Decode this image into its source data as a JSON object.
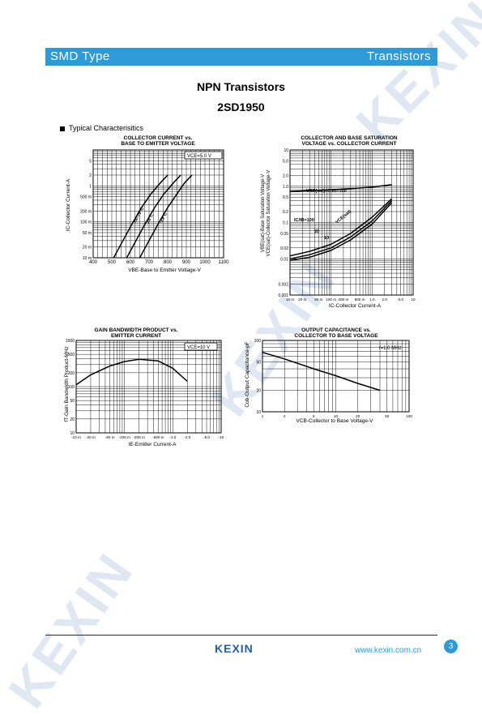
{
  "header": {
    "left": "SMD Type",
    "right": "Transistors"
  },
  "title": "NPN  Transistors",
  "part_number": "2SD1950",
  "section_label": "Typical  Characterisitics",
  "watermark": "KEXIN",
  "footer": {
    "logo": "KEXIN",
    "url": "www.kexin.com.cn",
    "page": "3"
  },
  "chart_data": [
    {
      "type": "line",
      "title": "COLLECTOR CURRENT vs. BASE TO EMITTER VOLTAGE",
      "title_lines": [
        "COLLECTOR CURRENT vs.",
        "BASE TO EMITTER VOLTAGE"
      ],
      "xlabel": "VBE-Base to Emitter Voltage-V",
      "ylabel": "IC-Collector Current-A",
      "condition": "VCE=5.0 V",
      "x_ticks": [
        "400",
        "500",
        "600",
        "700",
        "800",
        "900",
        "1000",
        "1100"
      ],
      "y_ticks": [
        "5",
        "2",
        "1",
        "500 m",
        "200 m",
        "100 m",
        "50 m",
        "20 m",
        "10 m"
      ],
      "xlim": [
        400,
        1100
      ],
      "ylim": [
        0.01,
        10
      ],
      "y_scale": "log",
      "series": [
        {
          "name": "Ta=75°C",
          "x": [
            510,
            560,
            610,
            660,
            710,
            760,
            800
          ],
          "y": [
            0.01,
            0.03,
            0.09,
            0.25,
            0.6,
            1.2,
            2.0
          ]
        },
        {
          "name": "25°C",
          "x": [
            580,
            630,
            680,
            730,
            780,
            830,
            870
          ],
          "y": [
            0.01,
            0.03,
            0.09,
            0.25,
            0.6,
            1.2,
            2.0
          ]
        },
        {
          "name": "-25°C",
          "x": [
            650,
            700,
            750,
            800,
            850,
            890,
            930
          ],
          "y": [
            0.01,
            0.03,
            0.09,
            0.25,
            0.6,
            1.2,
            2.0
          ]
        }
      ]
    },
    {
      "type": "line",
      "title": "COLLECTOR AND BASE SATURATION VOLTAGE vs. COLLECTOR CURRENT",
      "title_lines": [
        "COLLECTOR AND BASE SATURATION",
        "VOLTAGE vs. COLLECTOR CURRENT"
      ],
      "xlabel": "IC-Collector Current-A",
      "ylabel": "VBE(sat)-Base Saturation Voltage-V  VCE(sat)-Collector Saturation Voltage-V",
      "ylabel_lines": [
        "VBE(sat)-Base Saturation Voltage-V",
        "VCE(sat)-Collector Saturation Voltage-V"
      ],
      "x_ticks": [
        "10 m",
        "20 m",
        "50 m",
        "100 m",
        "200 m",
        "500 m",
        "1.0",
        "2.0",
        "5.0",
        "10"
      ],
      "y_ticks": [
        "10",
        "5.0",
        "2.0",
        "1.0",
        "0.5",
        "0.2",
        "0.1",
        "0.05",
        "0.02",
        "0.01",
        "0.002",
        "0.001"
      ],
      "xlim": [
        0.01,
        10
      ],
      "ylim": [
        0.001,
        10
      ],
      "x_scale": "log",
      "y_scale": "log",
      "annotations": [
        "VBE(sat)-IC/IB=100",
        "IC/IB=100",
        "VCE(sat)",
        "20",
        "10"
      ],
      "series": [
        {
          "name": "VBE(sat)-IC/IB=100",
          "x": [
            0.01,
            0.03,
            0.1,
            0.3,
            1.0,
            3.0
          ],
          "y": [
            0.72,
            0.76,
            0.8,
            0.86,
            0.95,
            1.1
          ]
        },
        {
          "name": "VCE(sat) IC/IB=100",
          "x": [
            0.01,
            0.03,
            0.1,
            0.3,
            1.0,
            3.0
          ],
          "y": [
            0.012,
            0.016,
            0.025,
            0.05,
            0.14,
            0.45
          ]
        },
        {
          "name": "20",
          "x": [
            0.01,
            0.03,
            0.1,
            0.3,
            1.0,
            3.0
          ],
          "y": [
            0.01,
            0.013,
            0.02,
            0.04,
            0.11,
            0.4
          ]
        },
        {
          "name": "10",
          "x": [
            0.01,
            0.03,
            0.1,
            0.3,
            1.0,
            3.0
          ],
          "y": [
            0.009,
            0.011,
            0.017,
            0.033,
            0.09,
            0.35
          ]
        }
      ]
    },
    {
      "type": "line",
      "title": "GAIN BANDWIDTH PRODUCT vs. EMITTER CURRENT",
      "title_lines": [
        "GAIN BANDWIDTH PRODUCT vs.",
        "EMITTER CURRENT"
      ],
      "xlabel": "IE-Emitter Current-A",
      "ylabel": "fT-Gain Bandwidth Product-MHz",
      "condition": "VCE=10 V",
      "x_ticks": [
        "-10 m",
        "-20 m",
        "-50 m",
        "-100 m",
        "-200 m",
        "-500 m",
        "-1.0",
        "-2.0",
        "-5.0",
        "-10"
      ],
      "y_ticks": [
        "1000",
        "500",
        "200",
        "100",
        "50",
        "20",
        "10"
      ],
      "xlim": [
        -0.01,
        -10
      ],
      "ylim": [
        10,
        1000
      ],
      "x_scale": "log",
      "y_scale": "log",
      "series": [
        {
          "name": "fT",
          "x": [
            -0.01,
            -0.02,
            -0.05,
            -0.1,
            -0.2,
            -0.5,
            -1.0,
            -2.0
          ],
          "y": [
            110,
            180,
            280,
            350,
            390,
            360,
            250,
            130
          ]
        }
      ]
    },
    {
      "type": "line",
      "title": "OUTPUT CAPACITANCE vs. COLLECTOR TO BASE VOLTAGE",
      "title_lines": [
        "OUTPUT CAPACITANCE vs.",
        "COLLECTOR TO BASE VOLTAGE"
      ],
      "xlabel": "VCB-Collector to Base Voltage-V",
      "ylabel": "Cob-Output Capacitance-pF",
      "condition": "f=1.0 MHz",
      "x_ticks": [
        "1",
        "2",
        "5",
        "10",
        "20",
        "50",
        "100"
      ],
      "y_ticks": [
        "100",
        "50",
        "20",
        "10"
      ],
      "xlim": [
        1,
        100
      ],
      "ylim": [
        10,
        100
      ],
      "x_scale": "log",
      "y_scale": "log",
      "series": [
        {
          "name": "Cob",
          "x": [
            1,
            2,
            5,
            10,
            20,
            40
          ],
          "y": [
            68,
            55,
            40,
            32,
            25,
            20
          ]
        }
      ]
    }
  ]
}
